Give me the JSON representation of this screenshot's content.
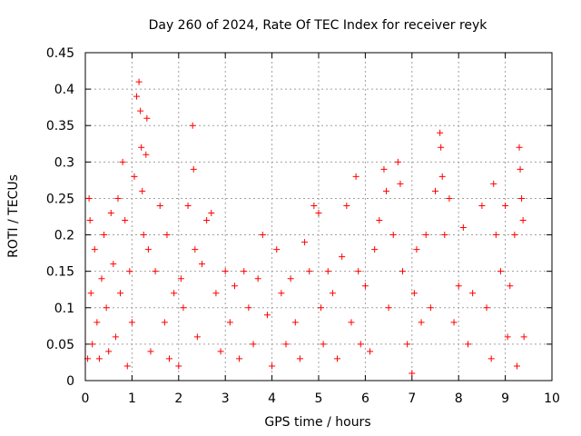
{
  "chart_data": {
    "type": "scatter",
    "title": "Day 260 of 2024, Rate Of TEC Index for receiver reyk",
    "xlabel": "GPS time / hours",
    "ylabel": "ROTI / TECUs",
    "xlim": [
      0,
      10
    ],
    "ylim": [
      0,
      0.45
    ],
    "xticks": [
      0,
      1,
      2,
      3,
      4,
      5,
      6,
      7,
      8,
      9,
      10
    ],
    "yticks": [
      0,
      0.05,
      0.1,
      0.15,
      0.2,
      0.25,
      0.3,
      0.35,
      0.4,
      0.45
    ],
    "grid": true,
    "marker": "plus",
    "color": "#ff0000",
    "series": [
      {
        "name": "ROTI",
        "points": [
          [
            0.05,
            0.03
          ],
          [
            0.08,
            0.25
          ],
          [
            0.1,
            0.22
          ],
          [
            0.12,
            0.12
          ],
          [
            0.15,
            0.05
          ],
          [
            0.2,
            0.18
          ],
          [
            0.25,
            0.08
          ],
          [
            0.3,
            0.03
          ],
          [
            0.35,
            0.14
          ],
          [
            0.4,
            0.2
          ],
          [
            0.45,
            0.1
          ],
          [
            0.5,
            0.04
          ],
          [
            0.55,
            0.23
          ],
          [
            0.6,
            0.16
          ],
          [
            0.65,
            0.06
          ],
          [
            0.7,
            0.25
          ],
          [
            0.75,
            0.12
          ],
          [
            0.8,
            0.3
          ],
          [
            0.85,
            0.22
          ],
          [
            0.9,
            0.02
          ],
          [
            0.95,
            0.15
          ],
          [
            1.0,
            0.08
          ],
          [
            1.05,
            0.28
          ],
          [
            1.1,
            0.39
          ],
          [
            1.15,
            0.41
          ],
          [
            1.18,
            0.37
          ],
          [
            1.2,
            0.32
          ],
          [
            1.22,
            0.26
          ],
          [
            1.25,
            0.2
          ],
          [
            1.3,
            0.31
          ],
          [
            1.32,
            0.36
          ],
          [
            1.35,
            0.18
          ],
          [
            1.4,
            0.04
          ],
          [
            1.5,
            0.15
          ],
          [
            1.6,
            0.24
          ],
          [
            1.7,
            0.08
          ],
          [
            1.75,
            0.2
          ],
          [
            1.8,
            0.03
          ],
          [
            1.9,
            0.12
          ],
          [
            2.0,
            0.02
          ],
          [
            2.05,
            0.14
          ],
          [
            2.1,
            0.1
          ],
          [
            2.2,
            0.24
          ],
          [
            2.3,
            0.35
          ],
          [
            2.32,
            0.29
          ],
          [
            2.35,
            0.18
          ],
          [
            2.4,
            0.06
          ],
          [
            2.5,
            0.16
          ],
          [
            2.6,
            0.22
          ],
          [
            2.7,
            0.23
          ],
          [
            2.8,
            0.12
          ],
          [
            2.9,
            0.04
          ],
          [
            3.0,
            0.15
          ],
          [
            3.1,
            0.08
          ],
          [
            3.2,
            0.13
          ],
          [
            3.3,
            0.03
          ],
          [
            3.4,
            0.15
          ],
          [
            3.5,
            0.1
          ],
          [
            3.6,
            0.05
          ],
          [
            3.7,
            0.14
          ],
          [
            3.8,
            0.2
          ],
          [
            3.9,
            0.09
          ],
          [
            4.0,
            0.02
          ],
          [
            4.1,
            0.18
          ],
          [
            4.2,
            0.12
          ],
          [
            4.3,
            0.05
          ],
          [
            4.4,
            0.14
          ],
          [
            4.5,
            0.08
          ],
          [
            4.6,
            0.03
          ],
          [
            4.7,
            0.19
          ],
          [
            4.8,
            0.15
          ],
          [
            4.9,
            0.24
          ],
          [
            5.0,
            0.23
          ],
          [
            5.05,
            0.1
          ],
          [
            5.1,
            0.05
          ],
          [
            5.2,
            0.15
          ],
          [
            5.3,
            0.12
          ],
          [
            5.4,
            0.03
          ],
          [
            5.5,
            0.17
          ],
          [
            5.6,
            0.24
          ],
          [
            5.7,
            0.08
          ],
          [
            5.8,
            0.28
          ],
          [
            5.85,
            0.15
          ],
          [
            5.9,
            0.05
          ],
          [
            6.0,
            0.13
          ],
          [
            6.1,
            0.04
          ],
          [
            6.2,
            0.18
          ],
          [
            6.3,
            0.22
          ],
          [
            6.4,
            0.29
          ],
          [
            6.45,
            0.26
          ],
          [
            6.5,
            0.1
          ],
          [
            6.6,
            0.2
          ],
          [
            6.7,
            0.3
          ],
          [
            6.75,
            0.27
          ],
          [
            6.8,
            0.15
          ],
          [
            6.9,
            0.05
          ],
          [
            7.0,
            0.01
          ],
          [
            7.05,
            0.12
          ],
          [
            7.1,
            0.18
          ],
          [
            7.2,
            0.08
          ],
          [
            7.3,
            0.2
          ],
          [
            7.4,
            0.1
          ],
          [
            7.5,
            0.26
          ],
          [
            7.6,
            0.34
          ],
          [
            7.62,
            0.32
          ],
          [
            7.65,
            0.28
          ],
          [
            7.7,
            0.2
          ],
          [
            7.8,
            0.25
          ],
          [
            7.9,
            0.08
          ],
          [
            8.0,
            0.13
          ],
          [
            8.1,
            0.21
          ],
          [
            8.2,
            0.05
          ],
          [
            8.3,
            0.12
          ],
          [
            8.5,
            0.24
          ],
          [
            8.6,
            0.1
          ],
          [
            8.7,
            0.03
          ],
          [
            8.75,
            0.27
          ],
          [
            8.8,
            0.2
          ],
          [
            8.9,
            0.15
          ],
          [
            9.0,
            0.24
          ],
          [
            9.05,
            0.06
          ],
          [
            9.1,
            0.13
          ],
          [
            9.2,
            0.2
          ],
          [
            9.25,
            0.02
          ],
          [
            9.3,
            0.32
          ],
          [
            9.32,
            0.29
          ],
          [
            9.35,
            0.25
          ],
          [
            9.38,
            0.22
          ],
          [
            9.4,
            0.06
          ]
        ]
      }
    ]
  }
}
